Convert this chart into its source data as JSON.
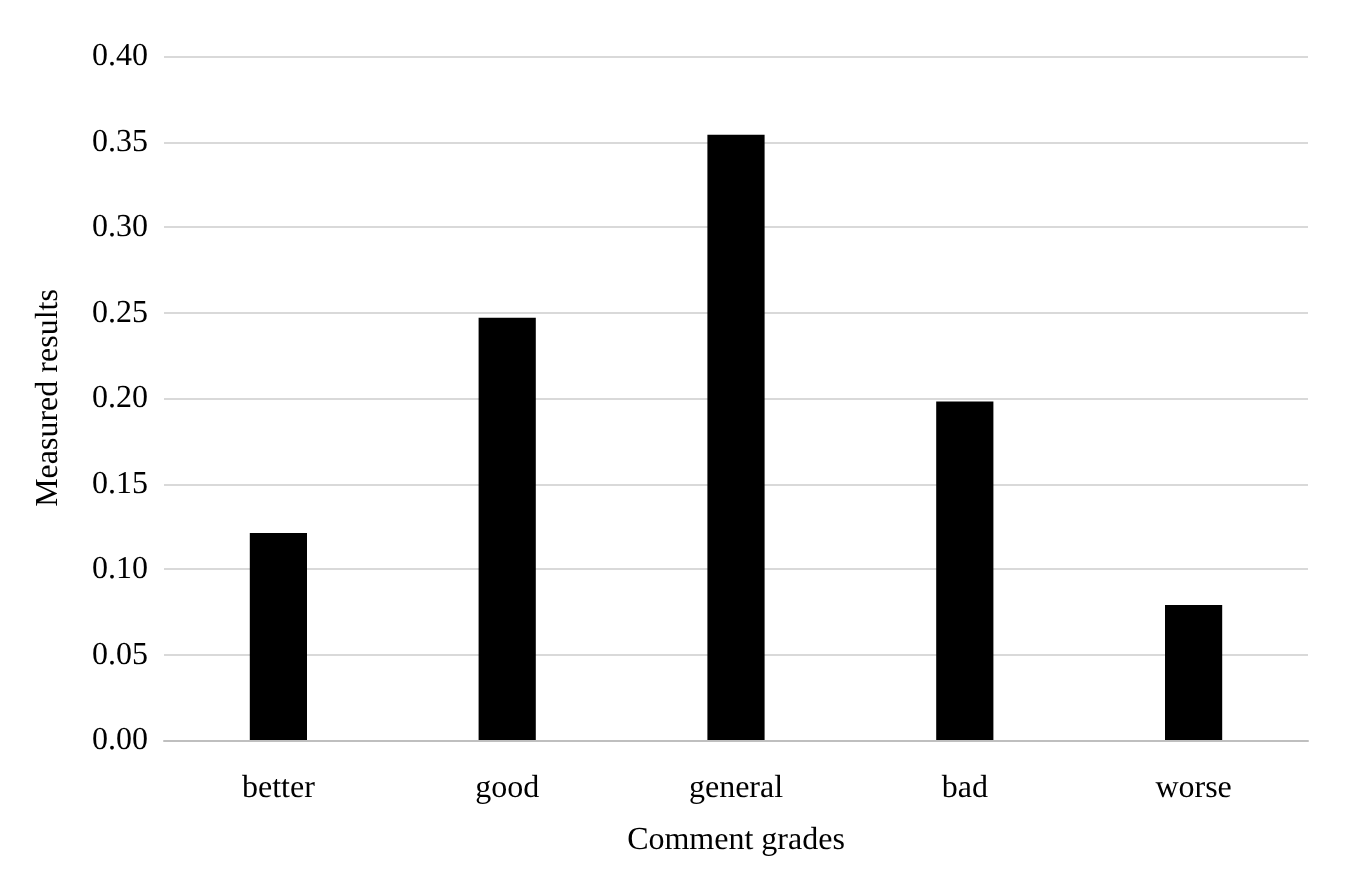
{
  "chart_data": {
    "type": "bar",
    "xlabel": "Comment grades",
    "ylabel": "Measured results",
    "categories": [
      "better",
      "good",
      "general",
      "bad",
      "worse"
    ],
    "values": [
      0.121,
      0.247,
      0.354,
      0.198,
      0.079
    ],
    "color": "#000000",
    "ylim": [
      0,
      0.4
    ],
    "yticks": [
      {
        "value": 0,
        "label": "0.00"
      },
      {
        "value": 0.05,
        "label": "0.05"
      },
      {
        "value": 0.1,
        "label": "0.10"
      },
      {
        "value": 0.15,
        "label": "0.15"
      },
      {
        "value": 0.2,
        "label": "0.20"
      },
      {
        "value": 0.25,
        "label": "0.25"
      },
      {
        "value": 0.3,
        "label": "0.30"
      },
      {
        "value": 0.35,
        "label": "0.35"
      },
      {
        "value": 0.4,
        "label": "0.40"
      }
    ],
    "grid": "y"
  }
}
